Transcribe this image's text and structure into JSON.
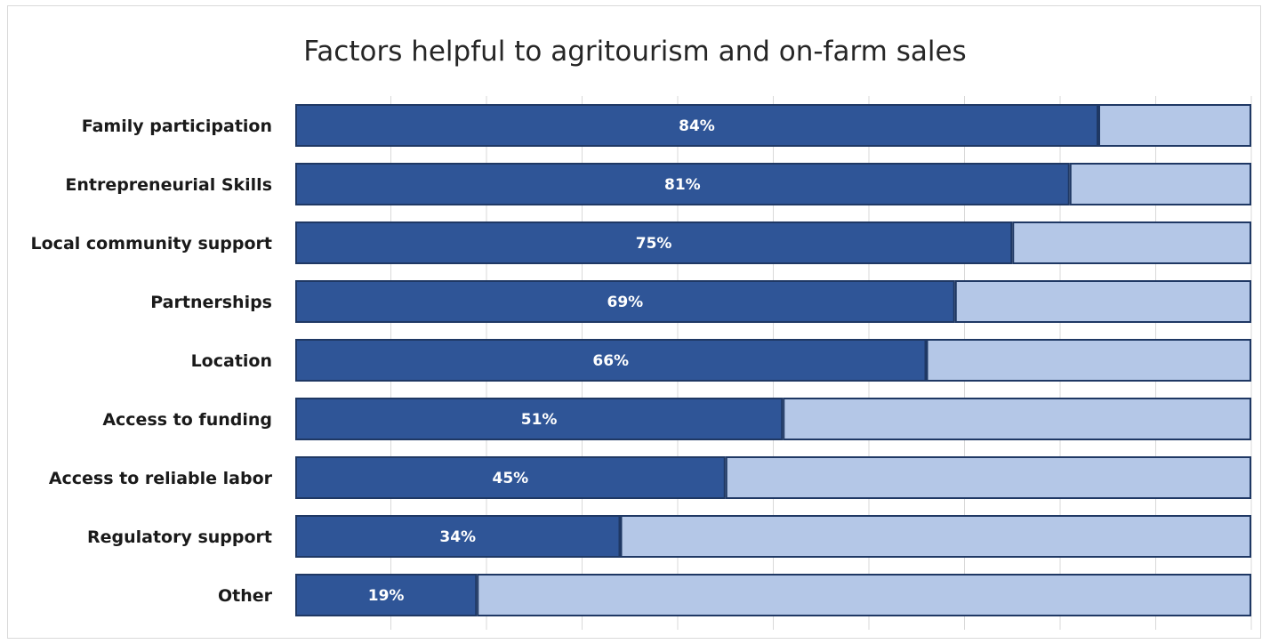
{
  "chart_data": {
    "type": "bar",
    "orientation": "horizontal",
    "stacked": true,
    "title": "Factors helpful to agritourism and on-farm sales",
    "categories": [
      "Family participation",
      "Entrepreneurial Skills",
      "Local community support",
      "Partnerships",
      "Location",
      "Access to funding",
      "Access to reliable labor",
      "Regulatory support",
      "Other"
    ],
    "series": [
      {
        "values": [
          84,
          81,
          75,
          69,
          66,
          51,
          45,
          34,
          19
        ],
        "color": "#2f5597"
      },
      {
        "values": [
          16,
          19,
          25,
          31,
          34,
          49,
          55,
          66,
          81
        ],
        "color": "#b4c7e7"
      }
    ],
    "data_labels": [
      "84%",
      "81%",
      "75%",
      "69%",
      "66%",
      "51%",
      "45%",
      "34%",
      "19%"
    ],
    "xlim": [
      0,
      100
    ],
    "grid": true,
    "legend": "none"
  }
}
